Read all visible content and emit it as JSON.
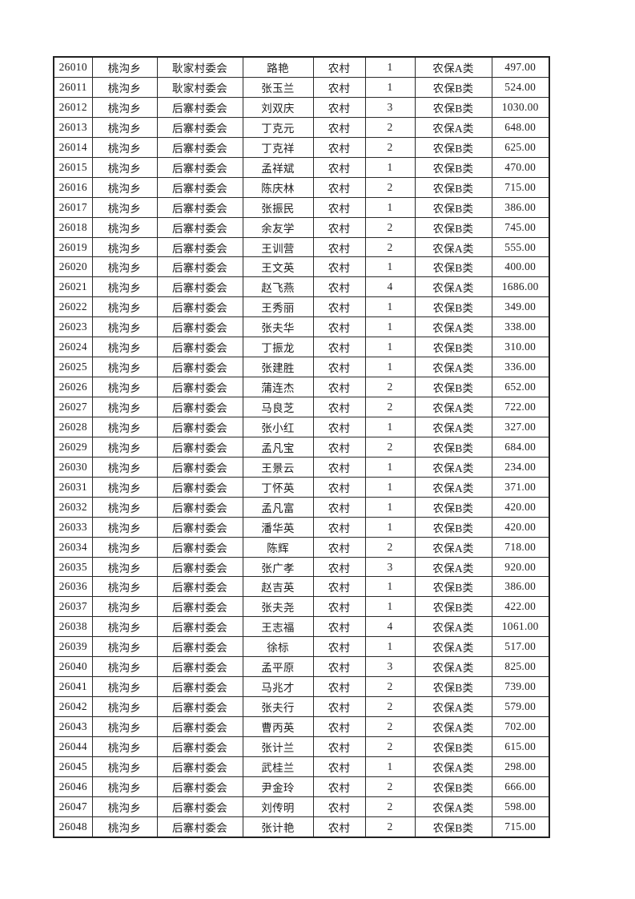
{
  "colors": {
    "page_background": "#ffffff",
    "table_border": "#222222",
    "cell_border": "#2a2a2a",
    "text": "#1c1c1c"
  },
  "table": {
    "rows": [
      [
        "26010",
        "桃沟乡",
        "耿家村委会",
        "路艳",
        "农村",
        "1",
        "农保A类",
        "497.00"
      ],
      [
        "26011",
        "桃沟乡",
        "耿家村委会",
        "张玉兰",
        "农村",
        "1",
        "农保B类",
        "524.00"
      ],
      [
        "26012",
        "桃沟乡",
        "后寨村委会",
        "刘双庆",
        "农村",
        "3",
        "农保B类",
        "1030.00"
      ],
      [
        "26013",
        "桃沟乡",
        "后寨村委会",
        "丁克元",
        "农村",
        "2",
        "农保A类",
        "648.00"
      ],
      [
        "26014",
        "桃沟乡",
        "后寨村委会",
        "丁克祥",
        "农村",
        "2",
        "农保B类",
        "625.00"
      ],
      [
        "26015",
        "桃沟乡",
        "后寨村委会",
        "孟祥斌",
        "农村",
        "1",
        "农保B类",
        "470.00"
      ],
      [
        "26016",
        "桃沟乡",
        "后寨村委会",
        "陈庆林",
        "农村",
        "2",
        "农保B类",
        "715.00"
      ],
      [
        "26017",
        "桃沟乡",
        "后寨村委会",
        "张振民",
        "农村",
        "1",
        "农保B类",
        "386.00"
      ],
      [
        "26018",
        "桃沟乡",
        "后寨村委会",
        "余友学",
        "农村",
        "2",
        "农保B类",
        "745.00"
      ],
      [
        "26019",
        "桃沟乡",
        "后寨村委会",
        "王训营",
        "农村",
        "2",
        "农保A类",
        "555.00"
      ],
      [
        "26020",
        "桃沟乡",
        "后寨村委会",
        "王文英",
        "农村",
        "1",
        "农保B类",
        "400.00"
      ],
      [
        "26021",
        "桃沟乡",
        "后寨村委会",
        "赵飞燕",
        "农村",
        "4",
        "农保A类",
        "1686.00"
      ],
      [
        "26022",
        "桃沟乡",
        "后寨村委会",
        "王秀丽",
        "农村",
        "1",
        "农保B类",
        "349.00"
      ],
      [
        "26023",
        "桃沟乡",
        "后寨村委会",
        "张夫华",
        "农村",
        "1",
        "农保A类",
        "338.00"
      ],
      [
        "26024",
        "桃沟乡",
        "后寨村委会",
        "丁振龙",
        "农村",
        "1",
        "农保B类",
        "310.00"
      ],
      [
        "26025",
        "桃沟乡",
        "后寨村委会",
        "张建胜",
        "农村",
        "1",
        "农保A类",
        "336.00"
      ],
      [
        "26026",
        "桃沟乡",
        "后寨村委会",
        "蒲连杰",
        "农村",
        "2",
        "农保B类",
        "652.00"
      ],
      [
        "26027",
        "桃沟乡",
        "后寨村委会",
        "马良芝",
        "农村",
        "2",
        "农保A类",
        "722.00"
      ],
      [
        "26028",
        "桃沟乡",
        "后寨村委会",
        "张小红",
        "农村",
        "1",
        "农保A类",
        "327.00"
      ],
      [
        "26029",
        "桃沟乡",
        "后寨村委会",
        "孟凡宝",
        "农村",
        "2",
        "农保B类",
        "684.00"
      ],
      [
        "26030",
        "桃沟乡",
        "后寨村委会",
        "王景云",
        "农村",
        "1",
        "农保A类",
        "234.00"
      ],
      [
        "26031",
        "桃沟乡",
        "后寨村委会",
        "丁怀英",
        "农村",
        "1",
        "农保A类",
        "371.00"
      ],
      [
        "26032",
        "桃沟乡",
        "后寨村委会",
        "孟凡富",
        "农村",
        "1",
        "农保B类",
        "420.00"
      ],
      [
        "26033",
        "桃沟乡",
        "后寨村委会",
        "潘华英",
        "农村",
        "1",
        "农保B类",
        "420.00"
      ],
      [
        "26034",
        "桃沟乡",
        "后寨村委会",
        "陈辉",
        "农村",
        "2",
        "农保A类",
        "718.00"
      ],
      [
        "26035",
        "桃沟乡",
        "后寨村委会",
        "张广孝",
        "农村",
        "3",
        "农保A类",
        "920.00"
      ],
      [
        "26036",
        "桃沟乡",
        "后寨村委会",
        "赵吉英",
        "农村",
        "1",
        "农保B类",
        "386.00"
      ],
      [
        "26037",
        "桃沟乡",
        "后寨村委会",
        "张夫尧",
        "农村",
        "1",
        "农保B类",
        "422.00"
      ],
      [
        "26038",
        "桃沟乡",
        "后寨村委会",
        "王志福",
        "农村",
        "4",
        "农保A类",
        "1061.00"
      ],
      [
        "26039",
        "桃沟乡",
        "后寨村委会",
        "徐标",
        "农村",
        "1",
        "农保A类",
        "517.00"
      ],
      [
        "26040",
        "桃沟乡",
        "后寨村委会",
        "孟平原",
        "农村",
        "3",
        "农保A类",
        "825.00"
      ],
      [
        "26041",
        "桃沟乡",
        "后寨村委会",
        "马兆才",
        "农村",
        "2",
        "农保B类",
        "739.00"
      ],
      [
        "26042",
        "桃沟乡",
        "后寨村委会",
        "张夫行",
        "农村",
        "2",
        "农保A类",
        "579.00"
      ],
      [
        "26043",
        "桃沟乡",
        "后寨村委会",
        "曹丙英",
        "农村",
        "2",
        "农保A类",
        "702.00"
      ],
      [
        "26044",
        "桃沟乡",
        "后寨村委会",
        "张计兰",
        "农村",
        "2",
        "农保B类",
        "615.00"
      ],
      [
        "26045",
        "桃沟乡",
        "后寨村委会",
        "武桂兰",
        "农村",
        "1",
        "农保A类",
        "298.00"
      ],
      [
        "26046",
        "桃沟乡",
        "后寨村委会",
        "尹金玲",
        "农村",
        "2",
        "农保B类",
        "666.00"
      ],
      [
        "26047",
        "桃沟乡",
        "后寨村委会",
        "刘传明",
        "农村",
        "2",
        "农保A类",
        "598.00"
      ],
      [
        "26048",
        "桃沟乡",
        "后寨村委会",
        "张计艳",
        "农村",
        "2",
        "农保B类",
        "715.00"
      ]
    ]
  }
}
